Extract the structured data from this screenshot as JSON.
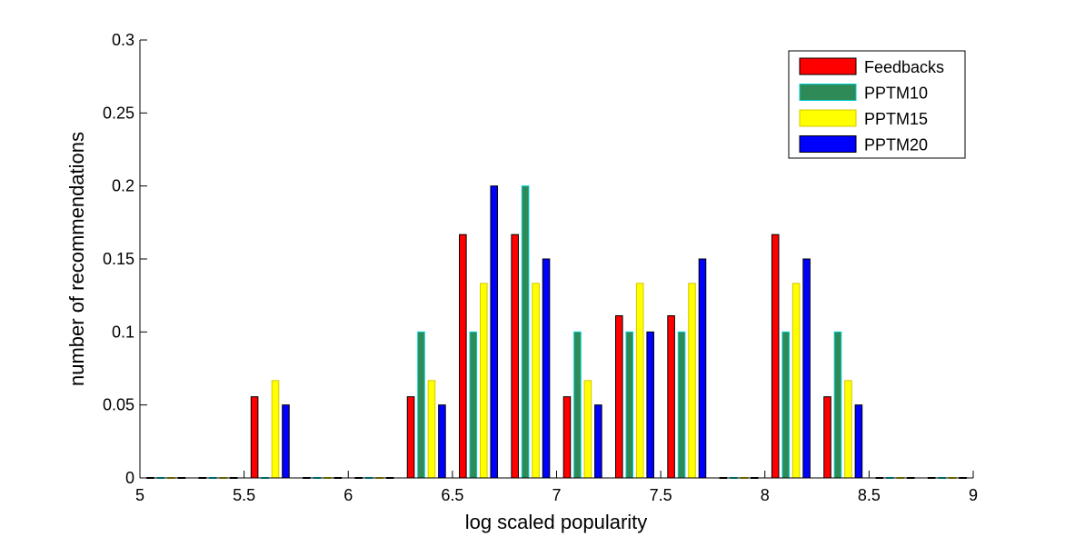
{
  "chart_data": {
    "type": "bar",
    "title": "",
    "xlabel": "log scaled popularity",
    "ylabel": "number of recommendations",
    "xlim": [
      5,
      9
    ],
    "ylim": [
      0,
      0.3
    ],
    "x_ticks": [
      "5",
      "5.5",
      "6",
      "6.5",
      "7",
      "7.5",
      "8",
      "8.5",
      "9"
    ],
    "y_ticks": [
      "0",
      "0.05",
      "0.1",
      "0.15",
      "0.2",
      "0.25",
      "0.3"
    ],
    "grid": false,
    "legend_position": "top-right",
    "x": [
      5.125,
      5.375,
      5.625,
      5.875,
      6.125,
      6.375,
      6.625,
      6.875,
      7.125,
      7.375,
      7.625,
      7.875,
      8.125,
      8.375,
      8.625,
      8.875
    ],
    "series": [
      {
        "name": "Feedbacks",
        "color": "#ff0000",
        "edge": "#000000",
        "values": [
          0,
          0,
          0.0556,
          0,
          0,
          0.0556,
          0.1667,
          0.1667,
          0.0556,
          0.1111,
          0.1111,
          0,
          0.1667,
          0.0556,
          0,
          0
        ]
      },
      {
        "name": "PPTM10",
        "color": "#2e8b57",
        "edge": "#00ced1",
        "values": [
          0,
          0,
          0,
          0,
          0,
          0.1,
          0.1,
          0.2,
          0.1,
          0.1,
          0.1,
          0,
          0.1,
          0.1,
          0,
          0
        ]
      },
      {
        "name": "PPTM15",
        "color": "#ffff00",
        "edge": "#d4c800",
        "values": [
          0,
          0,
          0.0667,
          0,
          0,
          0.0667,
          0.1333,
          0.1333,
          0.0667,
          0.1333,
          0.1333,
          0,
          0.1333,
          0.0667,
          0,
          0
        ]
      },
      {
        "name": "PPTM20",
        "color": "#0000ff",
        "edge": "#000000",
        "values": [
          0,
          0,
          0.05,
          0,
          0,
          0.05,
          0.2,
          0.15,
          0.05,
          0.1,
          0.15,
          0,
          0.15,
          0.05,
          0,
          0
        ]
      }
    ]
  }
}
